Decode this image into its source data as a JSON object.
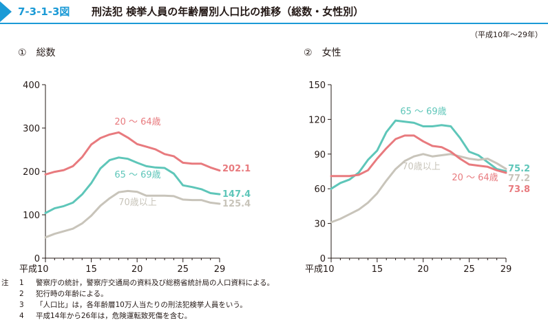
{
  "header": {
    "figure_number": "7-3-1-3図",
    "title": "刑法犯 検挙人員の年齢層別人口比の推移（総数・女性別）"
  },
  "period": "（平成10年〜29年）",
  "notes": {
    "label": "注",
    "items": [
      {
        "num": "1",
        "text": "警察庁の統計，警察庁交通局の資料及び総務省統計局の人口資料による。"
      },
      {
        "num": "2",
        "text": "犯行時の年齢による。"
      },
      {
        "num": "3",
        "text": "「人口比」は，各年齢層10万人当たりの刑法犯検挙人員をいう。"
      },
      {
        "num": "4",
        "text": "平成14年から26年は，危険運転致死傷を含む。"
      }
    ]
  },
  "colors": {
    "age20_64": "#e87a7e",
    "age65_69": "#5ec6b9",
    "age70": "#c8c4ba",
    "accent": "#1b9ad6",
    "axis": "#231815"
  },
  "chart_data": [
    {
      "type": "line",
      "subtitle_num": "①",
      "subtitle": "総数",
      "x": [
        10,
        11,
        12,
        13,
        14,
        15,
        16,
        17,
        18,
        19,
        20,
        21,
        22,
        23,
        24,
        25,
        26,
        27,
        28,
        29
      ],
      "xticks": [
        10,
        15,
        20,
        25,
        29
      ],
      "xtick_labels": [
        "平成10",
        "15",
        "20",
        "25",
        "29"
      ],
      "ylim": [
        0,
        400
      ],
      "yticks": [
        0,
        100,
        200,
        300,
        400
      ],
      "series": [
        {
          "name": "20 〜 64歳",
          "color_key": "age20_64",
          "values": [
            193,
            199,
            203,
            212,
            233,
            262,
            277,
            285,
            290,
            278,
            263,
            257,
            251,
            240,
            235,
            220,
            218,
            218,
            209,
            202.1
          ],
          "end_label": "202.1"
        },
        {
          "name": "65 〜 69歳",
          "color_key": "age65_69",
          "values": [
            104,
            115,
            120,
            128,
            147,
            173,
            207,
            226,
            232,
            229,
            220,
            212,
            209,
            208,
            195,
            168,
            164,
            159,
            150,
            147.4
          ],
          "end_label": "147.4"
        },
        {
          "name": "70歳以上",
          "color_key": "age70",
          "values": [
            48,
            56,
            62,
            68,
            80,
            98,
            121,
            138,
            152,
            155,
            153,
            144,
            144,
            144,
            143,
            135,
            134,
            134,
            128,
            125.4
          ],
          "end_label": "125.4"
        }
      ]
    },
    {
      "type": "line",
      "subtitle_num": "②",
      "subtitle": "女性",
      "x": [
        10,
        11,
        12,
        13,
        14,
        15,
        16,
        17,
        18,
        19,
        20,
        21,
        22,
        23,
        24,
        25,
        26,
        27,
        28,
        29
      ],
      "xticks": [
        10,
        15,
        20,
        25,
        29
      ],
      "xtick_labels": [
        "平成10",
        "15",
        "20",
        "25",
        "29"
      ],
      "ylim": [
        0,
        150
      ],
      "yticks": [
        0,
        30,
        60,
        90,
        120,
        150
      ],
      "series": [
        {
          "name": "65 〜 69歳",
          "color_key": "age65_69",
          "values": [
            60,
            65,
            68,
            74,
            85,
            93,
            109,
            119,
            118,
            117,
            114,
            114,
            115,
            114,
            104,
            92,
            89,
            83,
            77,
            75.2
          ],
          "end_label": "75.2"
        },
        {
          "name": "70歳以上",
          "color_key": "age70",
          "values": [
            31,
            34,
            38,
            42,
            48,
            56,
            67,
            77,
            84,
            88,
            90,
            88,
            89,
            90,
            88,
            86,
            85,
            86,
            82,
            77.2
          ],
          "end_label": "77.2"
        },
        {
          "name": "20 〜 64歳",
          "color_key": "age20_64",
          "values": [
            71,
            71,
            71,
            72,
            76,
            86,
            95,
            103,
            106,
            106,
            101,
            97,
            96,
            92,
            86,
            81,
            80,
            79,
            76,
            73.8
          ],
          "end_label": "73.8"
        }
      ]
    }
  ]
}
